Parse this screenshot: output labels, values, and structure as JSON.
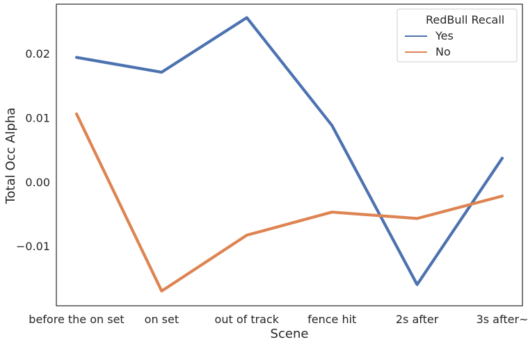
{
  "chart_data": {
    "type": "line",
    "categories": [
      "before the on set",
      "on set",
      "out of track",
      "fence hit",
      "2s after",
      "3s after~"
    ],
    "series": [
      {
        "name": "Yes",
        "color": "#4c72b0",
        "values": [
          0.0194,
          0.0171,
          0.0256,
          0.0088,
          -0.016,
          0.0037
        ]
      },
      {
        "name": "No",
        "color": "#dd8452",
        "values": [
          0.0106,
          -0.017,
          -0.0083,
          -0.0047,
          -0.0057,
          -0.0022
        ]
      }
    ],
    "xlabel": "Scene",
    "ylabel": "Total Occ Alpha",
    "ylim": [
      -0.0193,
      0.0277
    ],
    "yticks": [
      -0.01,
      0.0,
      0.01,
      0.02
    ],
    "ytick_labels": [
      "−0.01",
      "0.00",
      "0.01",
      "0.02"
    ],
    "grid": false,
    "legend": {
      "title": "RedBull Recall",
      "placement": "top-right"
    }
  }
}
